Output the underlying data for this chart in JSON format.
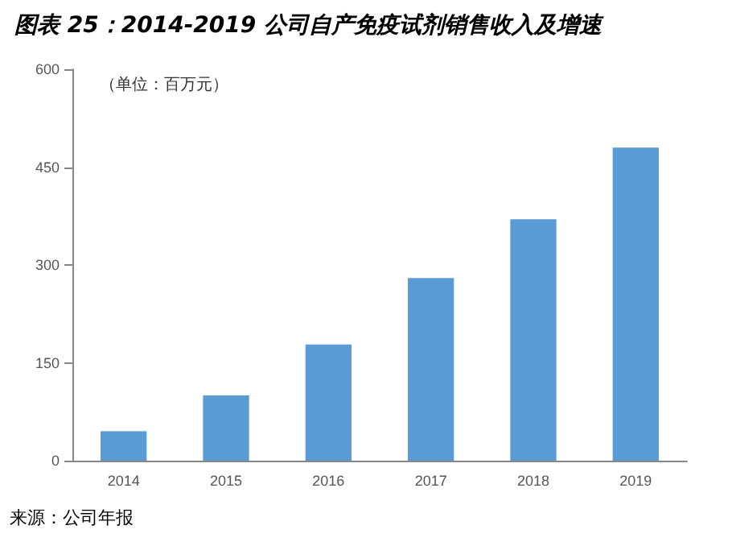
{
  "chart_data": {
    "type": "bar",
    "title": "图表 25：2014-2019 公司自产免疫试剂销售收入及增速",
    "categories": [
      "2014",
      "2015",
      "2016",
      "2017",
      "2018",
      "2019"
    ],
    "values": [
      45,
      100,
      178,
      280,
      370,
      480
    ],
    "color": "#5b9bd5",
    "ylim": [
      0,
      600
    ],
    "yticks": [
      0,
      150,
      300,
      450,
      600
    ],
    "grid": false,
    "annotations": [
      "（单位：百万元）",
      "来源：公司年报"
    ]
  }
}
